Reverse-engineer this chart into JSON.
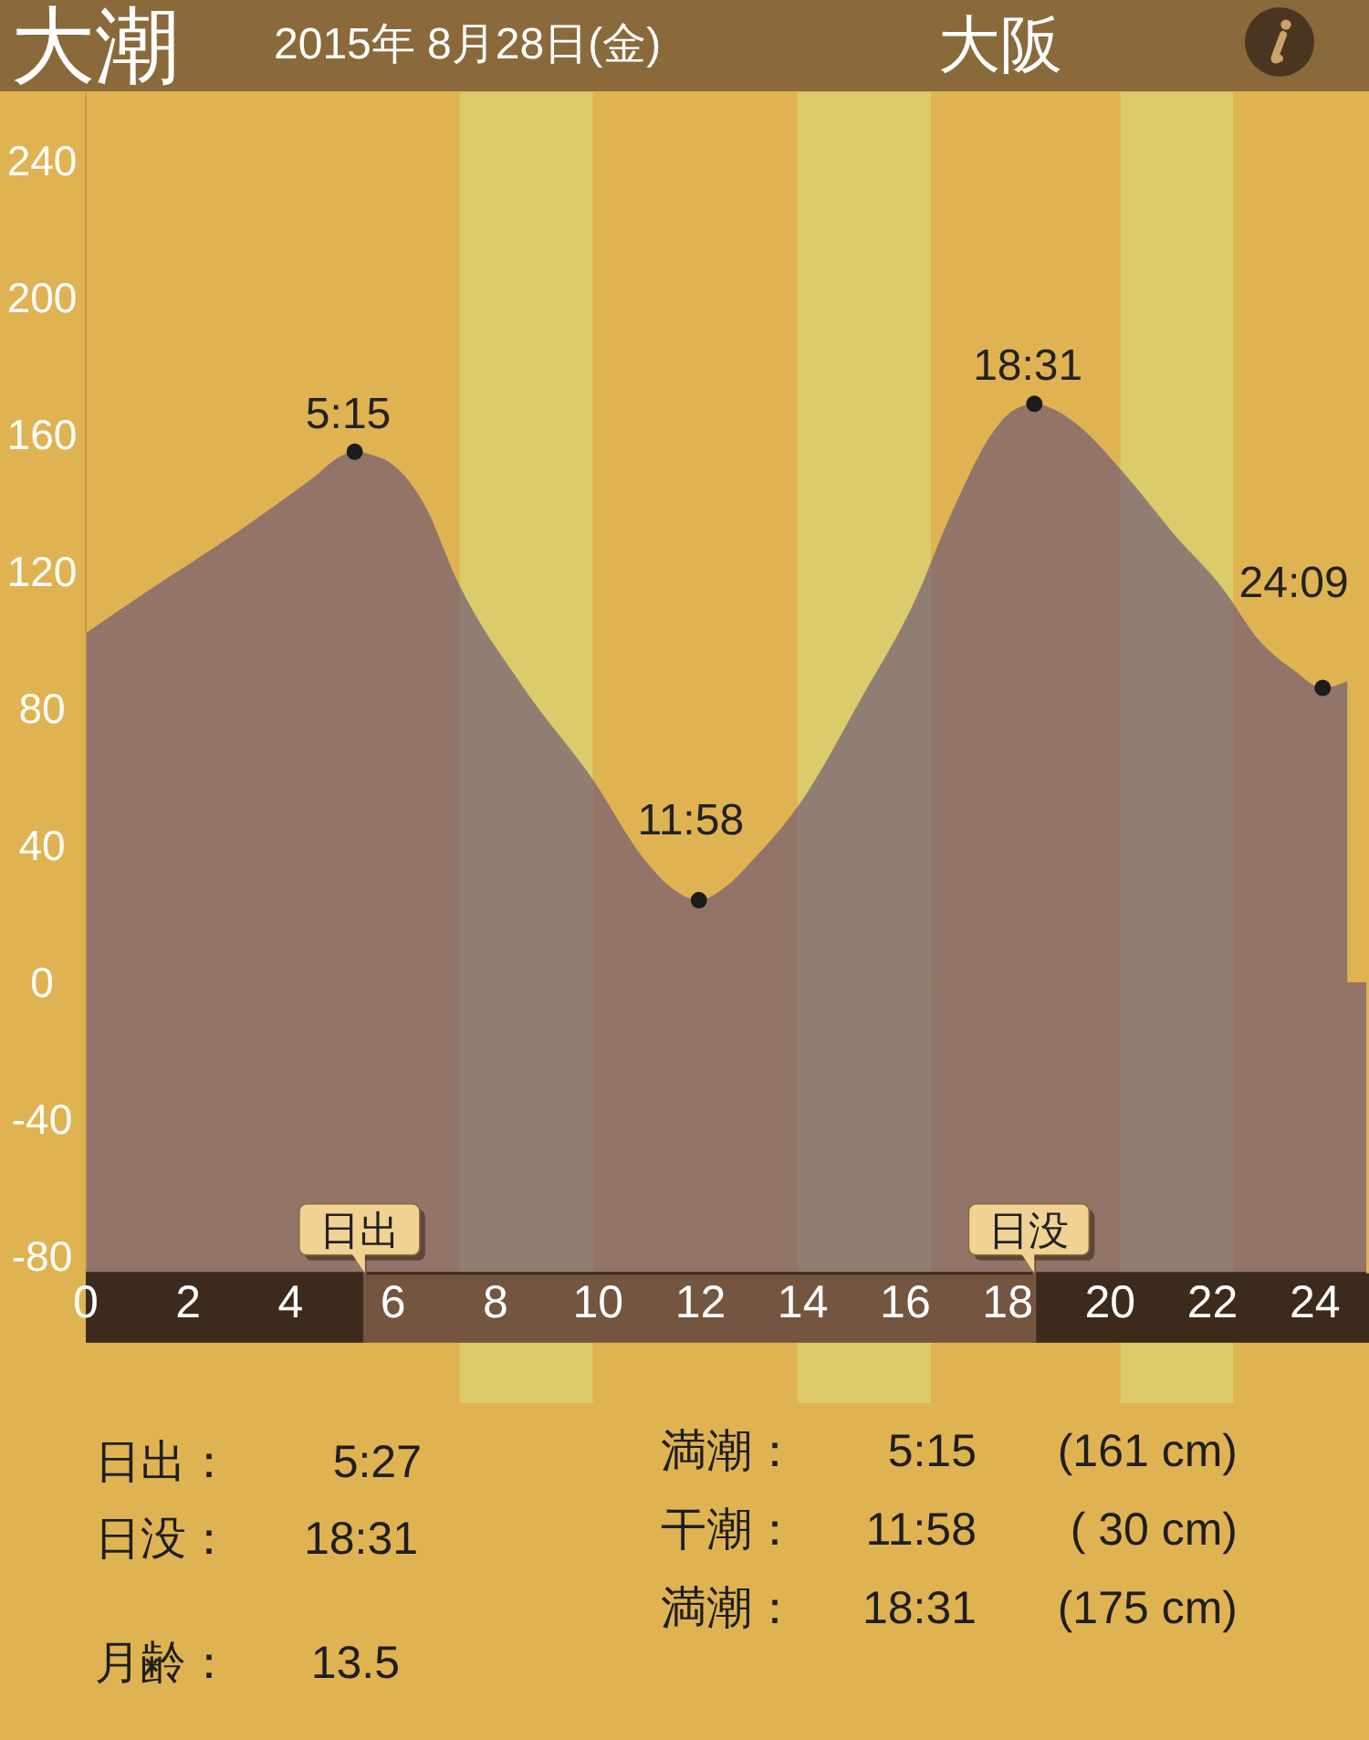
{
  "chart_data": {
    "type": "area",
    "title": "大潮",
    "subtitle": "2015年 8月28日(金)",
    "xlim": [
      0,
      25
    ],
    "xticks": [
      0,
      2,
      4,
      6,
      8,
      10,
      12,
      14,
      16,
      18,
      20,
      22,
      24
    ],
    "ylim": [
      -85,
      260
    ],
    "yticks": [
      -80,
      -40,
      0,
      40,
      80,
      120,
      160,
      200,
      240
    ],
    "x": [
      0,
      1.28,
      2.71,
      3.67,
      4.49,
      4.9,
      5.25,
      5.6,
      5.92,
      6.63,
      7.23,
      8.55,
      9.91,
      10.9,
      11.4,
      11.97,
      12.5,
      13.04,
      13.93,
      15.18,
      16.14,
      16.96,
      17.68,
      18.1,
      18.52,
      18.95,
      19.35,
      20.31,
      21.24,
      22.2,
      22.9,
      23.6,
      24.15,
      24.63
    ],
    "series": [
      {
        "type": "area",
        "color": "#54407a",
        "values": [
          102,
          115,
          129,
          139,
          148,
          153,
          155,
          154,
          152,
          139,
          118,
          86,
          59,
          36,
          28,
          24,
          28,
          36,
          52,
          84,
          110,
          139,
          160,
          167,
          169,
          167,
          163,
          148,
          131,
          115,
          100,
          91,
          86,
          88
        ]
      },
      {
        "type": "scatter",
        "color": "#1c1c1c",
        "marker": "circle",
        "x": [
          5.25,
          11.97,
          18.52,
          24.15
        ],
        "values": [
          155,
          24,
          169,
          86
        ]
      }
    ],
    "bands": [
      {
        "axis": "x",
        "from": 7.3,
        "to": 9.9,
        "color": "#dccb6a"
      },
      {
        "axis": "x",
        "from": 13.9,
        "to": 16.5,
        "color": "#dccb6a"
      },
      {
        "axis": "x",
        "from": 20.2,
        "to": 22.4,
        "color": "#dccb6a"
      },
      {
        "axis": "y",
        "from": -85,
        "to": 0,
        "color": "#54407a"
      }
    ],
    "ref_lines": [
      {
        "axis": "x",
        "value": 5.45,
        "label": "日出"
      },
      {
        "axis": "x",
        "value": 18.52,
        "label": "日没"
      }
    ],
    "annotations": [
      "大阪",
      "日出：",
      "5:27",
      "日没：",
      "18:31",
      "月齢：",
      "13.5",
      "満潮：",
      "5:15",
      "(161 cm)",
      "干潮：",
      "11:58",
      "( 30 cm)",
      "満潮：",
      "18:31",
      "(175 cm)",
      {
        "text": "5:15",
        "x": 5.25,
        "y": 155
      },
      {
        "text": "11:58",
        "x": 11.97,
        "y": 24
      },
      {
        "text": "18:31",
        "x": 18.52,
        "y": 169
      },
      {
        "text": "24:09",
        "x": 24.15,
        "y": 86
      }
    ]
  }
}
